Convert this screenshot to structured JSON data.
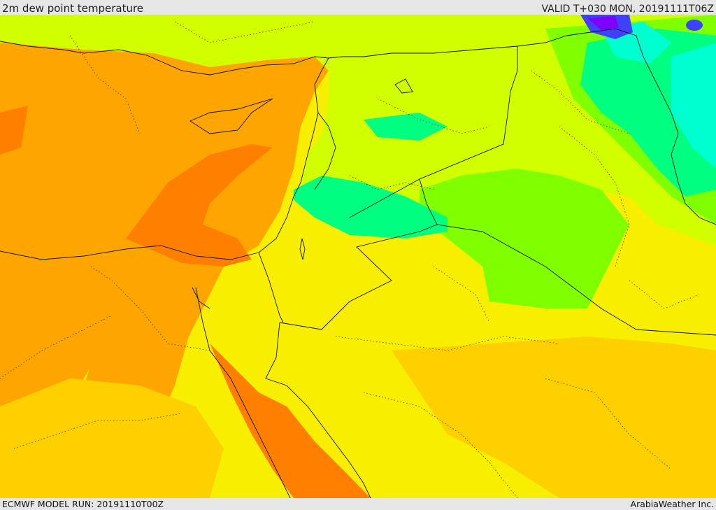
{
  "header": {
    "title": "2m dew point temperature",
    "valid": "VALID T+030 MON, 20191111T06Z"
  },
  "footer": {
    "model_run": "ECMWF MODEL RUN: 20191110T00Z",
    "credit": "ArabiaWeather Inc."
  },
  "map": {
    "palette": {
      "dark_orange": "#ff7f00",
      "orange": "#ffa500",
      "light_orange": "#ffd000",
      "yellow": "#ffff00",
      "yellow_green": "#d2ff00",
      "green": "#80ff00",
      "teal_green": "#00ff80",
      "cyan": "#00ffd0",
      "blue": "#4040ff",
      "purple": "#8000ff"
    },
    "layers": [
      "dew-point-field",
      "country-borders",
      "province-borders",
      "coastlines"
    ]
  }
}
